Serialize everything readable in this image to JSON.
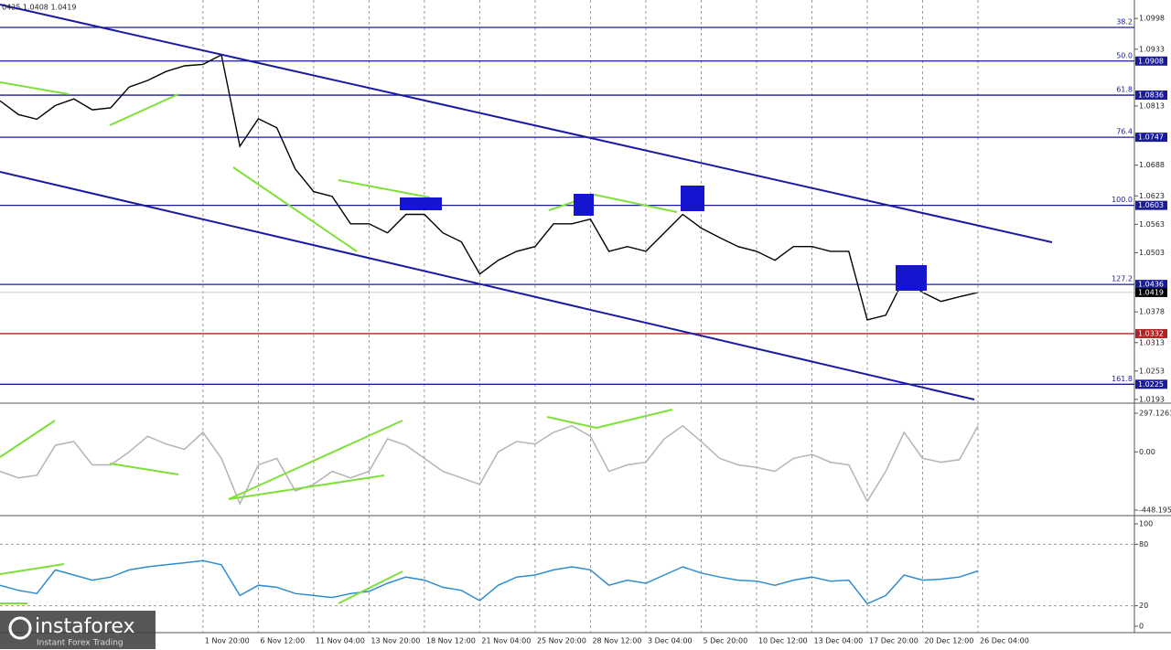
{
  "chart_data": [
    {
      "type": "line",
      "title": "0425 1.0408 1.0419",
      "categories": [
        null,
        null,
        null,
        null,
        null,
        null,
        null,
        null,
        null,
        null,
        null,
        "1 Nov 20:00",
        null,
        null,
        "6 Nov 12:00",
        null,
        null,
        "11 Nov 04:00",
        null,
        null,
        "13 Nov 20:00",
        null,
        null,
        "18 Nov 12:00",
        null,
        null,
        "21 Nov 04:00",
        null,
        null,
        "25 Nov 20:00",
        null,
        null,
        "28 Nov 12:00",
        null,
        null,
        "3 Dec 04:00",
        null,
        null,
        "5 Dec 20:00",
        null,
        null,
        "10 Dec 12:00",
        null,
        null,
        "13 Dec 04:00",
        null,
        null,
        "17 Dec 20:00",
        null,
        null,
        "20 Dec 12:00",
        null,
        null,
        "26 Dec 04:00"
      ],
      "series": [
        {
          "color": "#000000",
          "values": [
            1.0824,
            1.0795,
            1.0785,
            1.0814,
            1.0828,
            1.0805,
            1.0809,
            1.0853,
            1.0867,
            1.0886,
            1.0898,
            1.0901,
            1.0921,
            1.0728,
            1.0786,
            1.0767,
            1.068,
            1.0632,
            1.0622,
            1.0564,
            1.0564,
            1.0545,
            1.0584,
            1.0584,
            1.0545,
            1.0526,
            1.0458,
            1.0487,
            1.0506,
            1.0516,
            1.0564,
            1.0564,
            1.0574,
            1.0506,
            1.0516,
            1.0506,
            1.0545,
            1.0584,
            1.0555,
            1.0535,
            1.0516,
            1.0506,
            1.0487,
            1.0516,
            1.0516,
            1.0506,
            1.0506,
            1.0361,
            1.0371,
            1.0448,
            1.0419,
            1.04,
            1.041,
            1.0419
          ]
        }
      ],
      "ylim": [
        1.0187,
        1.1037
      ],
      "yticks": [
        1.0998,
        1.0933,
        1.0813,
        1.0688,
        1.0623,
        1.0563,
        1.0503,
        1.0378,
        1.0313,
        1.0253,
        1.0193
      ],
      "levels": [
        {
          "name": "38.2",
          "value": 1.0979,
          "color": "#1a1a9c",
          "label_box": false
        },
        {
          "name": "50.0",
          "value": 1.0908,
          "color": "#1a1a9c",
          "label_box": true
        },
        {
          "name": "61.8",
          "value": 1.0836,
          "color": "#1a1a9c",
          "label_box": true
        },
        {
          "name": "76.4",
          "value": 1.0747,
          "color": "#1a1a9c",
          "label_box": true
        },
        {
          "name": "100.0",
          "value": 1.0603,
          "color": "#1a1a9c",
          "label_box": true
        },
        {
          "name": "127.2",
          "value": 1.0436,
          "color": "#1a1a9c",
          "label_box": true
        },
        {
          "value": 1.0332,
          "color": "#b22222",
          "label_box": true
        },
        {
          "name": "161.8",
          "value": 1.0225,
          "color": "#1a1a9c",
          "label_box": true
        }
      ],
      "current_price": 1.0419,
      "grid": true
    },
    {
      "type": "line",
      "series": [
        {
          "color": "#b4b4b4",
          "values": [
            -150,
            -200,
            -180,
            50,
            80,
            -100,
            -100,
            0,
            120,
            60,
            20,
            150,
            -50,
            -400,
            -100,
            -50,
            -300,
            -250,
            -150,
            -200,
            -150,
            100,
            50,
            -50,
            -150,
            -200,
            -250,
            0,
            80,
            60,
            150,
            200,
            120,
            -150,
            -100,
            -80,
            100,
            200,
            80,
            -50,
            -100,
            -120,
            -150,
            -50,
            -20,
            -80,
            -100,
            -380,
            -150,
            150,
            -50,
            -80,
            -60,
            200
          ]
        }
      ],
      "ylim": [
        -448.195,
        297.1261
      ],
      "yticks": [
        297.1261,
        {
          "value": 0,
          "label": "0.00"
        },
        -448.195
      ]
    },
    {
      "type": "line",
      "series": [
        {
          "color": "#2f8ccf",
          "values": [
            40,
            35,
            32,
            55,
            50,
            45,
            48,
            55,
            58,
            60,
            62,
            64,
            60,
            30,
            40,
            38,
            32,
            30,
            28,
            32,
            34,
            42,
            48,
            45,
            38,
            35,
            25,
            40,
            48,
            50,
            55,
            58,
            55,
            40,
            45,
            42,
            50,
            58,
            52,
            48,
            45,
            44,
            40,
            45,
            48,
            44,
            45,
            22,
            30,
            50,
            45,
            46,
            48,
            54
          ]
        }
      ],
      "ylim": [
        0,
        100
      ],
      "yticks": [
        100,
        80,
        20,
        0
      ]
    }
  ],
  "branding": {
    "name": "instaforex",
    "tagline": "Instant Forex Trading"
  }
}
